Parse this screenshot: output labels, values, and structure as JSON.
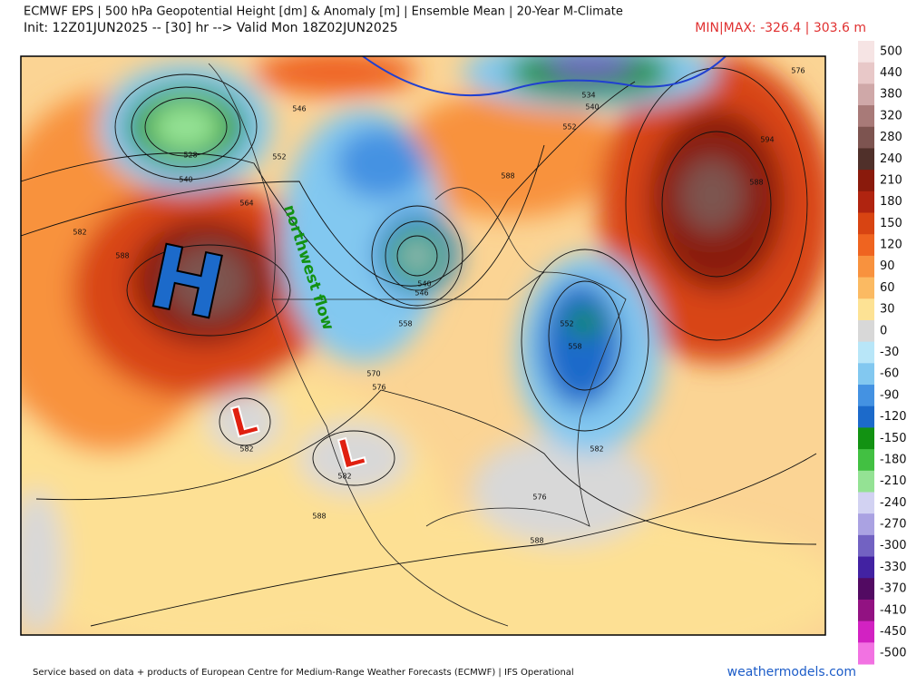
{
  "header": {
    "title": "ECMWF EPS | 500 hPa Geopotential Height [dm] & Anomaly [m] | Ensemble Mean | 20-Year M-Climate",
    "init": "Init: 12Z01JUN2025 -- [30] hr --> Valid Mon 18Z02JUN2025",
    "minmax": "MIN|MAX: -326.4 | 303.6 m"
  },
  "colorbar": {
    "ticks": [
      500,
      440,
      380,
      320,
      280,
      240,
      210,
      180,
      150,
      120,
      90,
      60,
      30,
      0,
      -30,
      -60,
      -90,
      -120,
      -150,
      -180,
      -210,
      -240,
      -270,
      -300,
      -330,
      -370,
      -410,
      -450,
      -500
    ],
    "colors": [
      "#f6e4e4",
      "#e8c8c8",
      "#cfa8a8",
      "#a87a78",
      "#7d5450",
      "#50302a",
      "#8a1a0c",
      "#b02410",
      "#d84412",
      "#ef6420",
      "#f8923e",
      "#fbba62",
      "#fde294",
      "#d8d8d8",
      "#b8e6f8",
      "#82c8f0",
      "#4492e2",
      "#1c6aca",
      "#129212",
      "#42c042",
      "#94e294",
      "#d2d2f2",
      "#aaa2e2",
      "#7262c2",
      "#4222a2",
      "#520a62",
      "#921282",
      "#d222c2",
      "#f272e2"
    ]
  },
  "map": {
    "annotations": [
      "H",
      "L",
      "L",
      "northwest flow"
    ],
    "contour_labels": [
      "546",
      "552",
      "564",
      "582",
      "588",
      "528",
      "540",
      "546",
      "540",
      "558",
      "570",
      "576",
      "552",
      "558",
      "582",
      "588",
      "594",
      "588",
      "576",
      "534",
      "540",
      "552",
      "582",
      "582",
      "588",
      "588",
      "576"
    ]
  },
  "footer": {
    "credit": "Service based on data + products of European Centre for Medium-Range Weather Forecasts (ECMWF) | IFS Operational",
    "site": "weathermodels.com"
  }
}
